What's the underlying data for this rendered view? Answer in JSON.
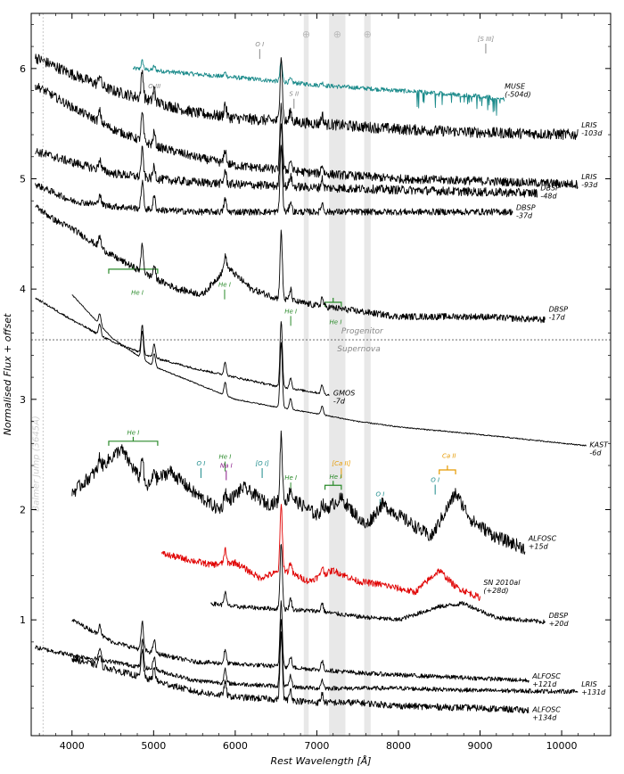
{
  "chart_data": {
    "type": "line",
    "xlabel": "Rest Wavelength [Å]",
    "ylabel": "Normalised Flux + offset",
    "xlim": [
      3500,
      10600
    ],
    "ylim": [
      -0.05,
      6.5
    ],
    "xticks": [
      4000,
      5000,
      6000,
      7000,
      8000,
      9000,
      10000
    ],
    "yticks": [
      1,
      2,
      3,
      4,
      5,
      6
    ],
    "grid": false,
    "separator": {
      "y": 3.54,
      "above_label": "Progenitor",
      "below_label": "Supernova"
    },
    "balmer_jump": {
      "x": 3645,
      "label": "Balmer Jump (3645Å)"
    },
    "telluric_bands": [
      [
        6840,
        6900
      ],
      [
        7150,
        7350
      ],
      [
        7580,
        7660
      ]
    ],
    "telluric_symbols": [
      {
        "x": 6870,
        "sym": "⊕"
      },
      {
        "x": 7250,
        "sym": "⊕"
      },
      {
        "x": 7620,
        "sym": "⊕"
      }
    ],
    "series": [
      {
        "name": "MUSE",
        "label": "MUSE (-504d)",
        "color": "#1a8a8a",
        "x0": 4750,
        "x1": 9300,
        "anchors": [
          [
            4750,
            6.0
          ],
          [
            5500,
            5.95
          ],
          [
            6300,
            5.9
          ],
          [
            7000,
            5.85
          ],
          [
            8000,
            5.8
          ],
          [
            9000,
            5.75
          ],
          [
            9300,
            5.72
          ]
        ],
        "noise": 0.02,
        "label_at": [
          9280,
          5.8
        ]
      },
      {
        "name": "LRIS",
        "label": "LRIS -103d",
        "color": "#000000",
        "x0": 3550,
        "x1": 10200,
        "anchors": [
          [
            3550,
            6.1
          ],
          [
            4000,
            5.95
          ],
          [
            4500,
            5.8
          ],
          [
            5000,
            5.7
          ],
          [
            5500,
            5.6
          ],
          [
            6000,
            5.55
          ],
          [
            7000,
            5.5
          ],
          [
            8000,
            5.45
          ],
          [
            9000,
            5.42
          ],
          [
            10200,
            5.4
          ]
        ],
        "noise": 0.05,
        "label_at": [
          10220,
          5.45
        ]
      },
      {
        "name": "LRIS",
        "label": "LRIS -93d",
        "color": "#000000",
        "x0": 3550,
        "x1": 10200,
        "anchors": [
          [
            3550,
            5.85
          ],
          [
            4000,
            5.65
          ],
          [
            4500,
            5.45
          ],
          [
            5000,
            5.3
          ],
          [
            5500,
            5.2
          ],
          [
            6000,
            5.12
          ],
          [
            7000,
            5.05
          ],
          [
            8000,
            5.0
          ],
          [
            9000,
            4.98
          ],
          [
            10200,
            4.95
          ]
        ],
        "noise": 0.04,
        "label_at": [
          10220,
          4.98
        ]
      },
      {
        "name": "DBSP",
        "label": "DBSP -48d",
        "color": "#000000",
        "x0": 3550,
        "x1": 9700,
        "anchors": [
          [
            3550,
            5.25
          ],
          [
            4000,
            5.15
          ],
          [
            4500,
            5.05
          ],
          [
            5000,
            5.0
          ],
          [
            5500,
            4.97
          ],
          [
            6000,
            4.95
          ],
          [
            7000,
            4.92
          ],
          [
            8000,
            4.9
          ],
          [
            9000,
            4.88
          ],
          [
            9700,
            4.87
          ]
        ],
        "noise": 0.04,
        "label_at": [
          9720,
          4.88
        ]
      },
      {
        "name": "DBSP",
        "label": "DBSP -37d",
        "color": "#000000",
        "x0": 3550,
        "x1": 9400,
        "anchors": [
          [
            3550,
            4.95
          ],
          [
            4000,
            4.8
          ],
          [
            4500,
            4.75
          ],
          [
            5000,
            4.72
          ],
          [
            5500,
            4.7
          ],
          [
            6000,
            4.7
          ],
          [
            7000,
            4.7
          ],
          [
            8000,
            4.7
          ],
          [
            9000,
            4.7
          ],
          [
            9400,
            4.7
          ]
        ],
        "noise": 0.03,
        "label_at": [
          9420,
          4.7
        ]
      },
      {
        "name": "DBSP",
        "label": "DBSP -17d",
        "color": "#000000",
        "x0": 3550,
        "x1": 9800,
        "anchors": [
          [
            3550,
            4.75
          ],
          [
            3800,
            4.62
          ],
          [
            4000,
            4.55
          ],
          [
            4500,
            4.3
          ],
          [
            5000,
            4.1
          ],
          [
            5300,
            4.0
          ],
          [
            5600,
            3.95
          ],
          [
            5900,
            4.2
          ],
          [
            6200,
            4.0
          ],
          [
            6500,
            3.92
          ],
          [
            7000,
            3.85
          ],
          [
            7500,
            3.8
          ],
          [
            8000,
            3.75
          ],
          [
            9000,
            3.75
          ],
          [
            9800,
            3.72
          ]
        ],
        "noise": 0.03,
        "label_at": [
          9820,
          3.78
        ]
      },
      {
        "name": "GMOS",
        "label": "GMOS -7d",
        "color": "#000000",
        "x0": 3550,
        "x1": 7150,
        "anchors": [
          [
            3550,
            3.92
          ],
          [
            4000,
            3.72
          ],
          [
            4500,
            3.52
          ],
          [
            5000,
            3.38
          ],
          [
            5500,
            3.28
          ],
          [
            6000,
            3.2
          ],
          [
            6500,
            3.12
          ],
          [
            7000,
            3.06
          ],
          [
            7150,
            3.04
          ]
        ],
        "noise": 0.01,
        "label_at": [
          7180,
          3.02
        ]
      },
      {
        "name": "KAST",
        "label": "KAST -6d",
        "color": "#000000",
        "x0": 4000,
        "x1": 10300,
        "anchors": [
          [
            4000,
            3.95
          ],
          [
            4500,
            3.55
          ],
          [
            5000,
            3.3
          ],
          [
            5500,
            3.15
          ],
          [
            6000,
            3.0
          ],
          [
            6500,
            2.93
          ],
          [
            7000,
            2.87
          ],
          [
            7500,
            2.8
          ],
          [
            8000,
            2.75
          ],
          [
            9000,
            2.68
          ],
          [
            10300,
            2.58
          ]
        ],
        "noise": 0.005,
        "label_at": [
          10320,
          2.55
        ]
      },
      {
        "name": "ALFOSC",
        "label": "ALFOSC +15d",
        "color": "#000000",
        "x0": 4000,
        "x1": 9550,
        "anchors": [
          [
            4000,
            2.15
          ],
          [
            4300,
            2.35
          ],
          [
            4600,
            2.55
          ],
          [
            4900,
            2.2
          ],
          [
            5200,
            2.35
          ],
          [
            5500,
            2.15
          ],
          [
            5800,
            2.0
          ],
          [
            6100,
            2.2
          ],
          [
            6400,
            2.05
          ],
          [
            6700,
            2.1
          ],
          [
            7000,
            1.95
          ],
          [
            7300,
            2.1
          ],
          [
            7600,
            1.85
          ],
          [
            7800,
            2.05
          ],
          [
            8100,
            1.9
          ],
          [
            8400,
            1.75
          ],
          [
            8700,
            2.15
          ],
          [
            8900,
            1.9
          ],
          [
            9200,
            1.75
          ],
          [
            9550,
            1.65
          ]
        ],
        "noise": 0.06,
        "label_at": [
          9570,
          1.7
        ]
      },
      {
        "name": "SN 2010al",
        "label": "SN 2010al (+28d)",
        "color": "#e00000",
        "x0": 5100,
        "x1": 9000,
        "anchors": [
          [
            5100,
            1.6
          ],
          [
            5400,
            1.55
          ],
          [
            5700,
            1.5
          ],
          [
            6000,
            1.52
          ],
          [
            6300,
            1.38
          ],
          [
            6600,
            1.45
          ],
          [
            6900,
            1.35
          ],
          [
            7200,
            1.45
          ],
          [
            7500,
            1.35
          ],
          [
            7800,
            1.32
          ],
          [
            8200,
            1.25
          ],
          [
            8500,
            1.45
          ],
          [
            8700,
            1.3
          ],
          [
            9000,
            1.2
          ]
        ],
        "noise": 0.03,
        "label_at": [
          9020,
          1.3
        ]
      },
      {
        "name": "DBSP",
        "label": "DBSP +20d",
        "color": "#000000",
        "x0": 5700,
        "x1": 9800,
        "anchors": [
          [
            5700,
            1.15
          ],
          [
            6000,
            1.12
          ],
          [
            6500,
            1.1
          ],
          [
            7000,
            1.08
          ],
          [
            7500,
            1.03
          ],
          [
            8000,
            1.0
          ],
          [
            8500,
            1.12
          ],
          [
            8800,
            1.15
          ],
          [
            9200,
            1.02
          ],
          [
            9800,
            0.98
          ]
        ],
        "noise": 0.02,
        "label_at": [
          9820,
          1.0
        ]
      },
      {
        "name": "ALFOSC",
        "label": "ALFOSC +121d",
        "color": "#000000",
        "x0": 4000,
        "x1": 9600,
        "anchors": [
          [
            4000,
            1.0
          ],
          [
            4500,
            0.8
          ],
          [
            5000,
            0.7
          ],
          [
            5500,
            0.62
          ],
          [
            6000,
            0.6
          ],
          [
            6500,
            0.58
          ],
          [
            7000,
            0.55
          ],
          [
            7500,
            0.52
          ],
          [
            8000,
            0.5
          ],
          [
            9000,
            0.47
          ],
          [
            9600,
            0.45
          ]
        ],
        "noise": 0.02,
        "label_at": [
          9620,
          0.45
        ]
      },
      {
        "name": "LRIS",
        "label": "LRIS +131d",
        "color": "#000000",
        "x0": 3550,
        "x1": 10200,
        "anchors": [
          [
            3550,
            0.75
          ],
          [
            4000,
            0.68
          ],
          [
            4500,
            0.62
          ],
          [
            5000,
            0.55
          ],
          [
            5500,
            0.45
          ],
          [
            6000,
            0.42
          ],
          [
            6500,
            0.4
          ],
          [
            7000,
            0.38
          ],
          [
            8000,
            0.38
          ],
          [
            9000,
            0.36
          ],
          [
            10200,
            0.35
          ]
        ],
        "noise": 0.02,
        "label_at": [
          10220,
          0.38
        ]
      },
      {
        "name": "ALFOSC",
        "label": "ALFOSC +134d",
        "color": "#000000",
        "x0": 4000,
        "x1": 9600,
        "anchors": [
          [
            4000,
            0.65
          ],
          [
            4500,
            0.55
          ],
          [
            5000,
            0.45
          ],
          [
            5500,
            0.35
          ],
          [
            6000,
            0.3
          ],
          [
            6500,
            0.28
          ],
          [
            7000,
            0.25
          ],
          [
            7500,
            0.25
          ],
          [
            8000,
            0.22
          ],
          [
            9000,
            0.2
          ],
          [
            9600,
            0.18
          ]
        ],
        "noise": 0.03,
        "label_at": [
          9620,
          0.15
        ]
      }
    ],
    "annotations": [
      {
        "text": "He I",
        "color": "#2a8a2a",
        "x": 4800,
        "y": 3.95,
        "bracket": [
          4450,
          5050,
          4.18
        ]
      },
      {
        "text": "He I",
        "color": "#2a8a2a",
        "x": 5870,
        "y": 4.02
      },
      {
        "text": "He I",
        "color": "#2a8a2a",
        "x": 6680,
        "y": 3.78
      },
      {
        "text": "He I",
        "color": "#2a8a2a",
        "x": 7230,
        "y": 3.68,
        "bracket": [
          7100,
          7300,
          3.88
        ]
      },
      {
        "text": "He I",
        "color": "#2a8a2a",
        "x": 4750,
        "y": 2.68,
        "bracket": [
          4450,
          5050,
          2.62
        ]
      },
      {
        "text": "O I",
        "color": "#1a8a8a",
        "x": 5580,
        "y": 2.4
      },
      {
        "text": "He I",
        "color": "#2a8a2a",
        "x": 5875,
        "y": 2.46
      },
      {
        "text": "Na I",
        "color": "#8a1a8a",
        "x": 5890,
        "y": 2.38
      },
      {
        "text": "[O I]",
        "color": "#1a8a8a",
        "x": 6330,
        "y": 2.4
      },
      {
        "text": "He I",
        "color": "#2a8a2a",
        "x": 6680,
        "y": 2.27
      },
      {
        "text": "[Ca II]",
        "color": "#e69a00",
        "x": 7300,
        "y": 2.4
      },
      {
        "text": "He I",
        "color": "#2a8a2a",
        "x": 7230,
        "y": 2.28,
        "bracket": [
          7100,
          7300,
          2.22
        ]
      },
      {
        "text": "O I",
        "color": "#1a8a8a",
        "x": 7775,
        "y": 2.12
      },
      {
        "text": "O I",
        "color": "#1a8a8a",
        "x": 8450,
        "y": 2.25
      },
      {
        "text": "Ca II",
        "color": "#e69a00",
        "x": 8620,
        "y": 2.47,
        "bracket": [
          8500,
          8700,
          2.36
        ]
      },
      {
        "text": "[S III]",
        "color": "#888888",
        "x": 9070,
        "y": 6.25
      },
      {
        "text": "O I",
        "color": "#888888",
        "x": 6300,
        "y": 6.2
      },
      {
        "text": "O III",
        "color": "#888888",
        "x": 5010,
        "y": 5.82
      },
      {
        "text": "S II",
        "color": "#888888",
        "x": 6720,
        "y": 5.75
      }
    ]
  }
}
